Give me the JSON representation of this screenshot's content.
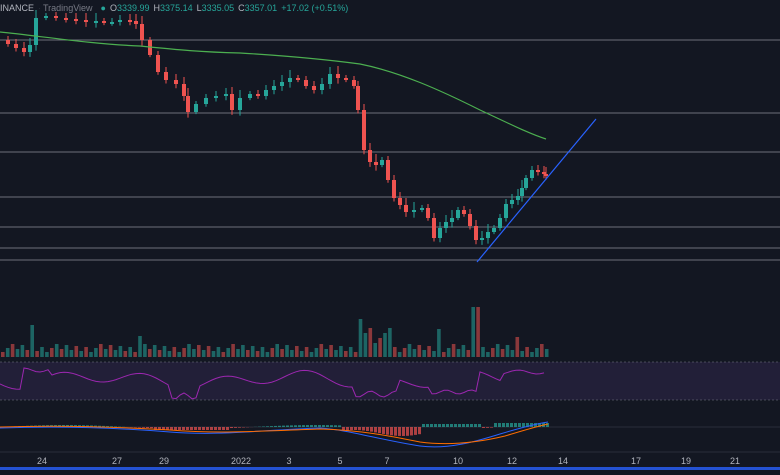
{
  "legend": {
    "exchange": "BINANCE",
    "separator": "·",
    "platform": "TradingView",
    "status_icon": "circle-icon",
    "o_label": "O",
    "o_value": "3339.99",
    "h_label": "H",
    "h_value": "3375.14",
    "l_label": "L",
    "l_value": "3335.05",
    "c_label": "C",
    "c_value": "3357.01",
    "change": "+17.02 (+0.51%)"
  },
  "x_axis_labels": [
    "24",
    "27",
    "29",
    "2022",
    "3",
    "5",
    "7",
    "10",
    "12",
    "14",
    "17",
    "19",
    "21"
  ],
  "colors": {
    "background": "#131722",
    "up": "#26a69a",
    "down": "#ef5350",
    "ma": "#4caf50",
    "trendline": "#2962ff",
    "rsi_band": "#7e57c2",
    "rsi_line": "#9c27b0",
    "macd_line": "#2962ff",
    "signal_line": "#ff6d00",
    "level_line": "#787b86"
  },
  "chart_data": {
    "type": "candlestick",
    "x_axis": "date",
    "candles_visible_count": 76,
    "moving_average": "single smooth line, descending",
    "horizontal_levels_count": 7,
    "trendline": "ascending from recent low",
    "panes": [
      "price",
      "volume",
      "rsi",
      "macd"
    ]
  }
}
